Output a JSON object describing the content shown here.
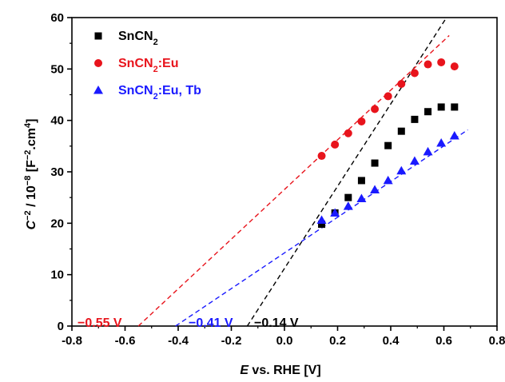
{
  "chart_data": {
    "type": "scatter",
    "xlabel_prefix": "E",
    "xlabel_rest": " vs. RHE [V]",
    "ylabel": {
      "c": "C",
      "sup1": "−2",
      "mid": " / 10",
      "sup2": "−8",
      "unit": " [F",
      "sup3": "−2",
      "unit2": ".cm",
      "sup4": "4",
      "close": "]"
    },
    "xlim": [
      -0.8,
      0.8
    ],
    "ylim": [
      0,
      60
    ],
    "xticks": [
      -0.8,
      -0.6,
      -0.4,
      -0.2,
      0.0,
      0.2,
      0.4,
      0.6,
      0.8
    ],
    "xtick_labels": [
      "-0.8",
      "-0.6",
      "-0.4",
      "-0.2",
      "0.0",
      "0.2",
      "0.4",
      "0.6",
      "0.8"
    ],
    "yticks": [
      0,
      10,
      20,
      30,
      40,
      50,
      60
    ],
    "ytick_labels": [
      "0",
      "10",
      "20",
      "30",
      "40",
      "50",
      "60"
    ],
    "grid": false,
    "legend_position": "top-left",
    "series": [
      {
        "name": "SnCN",
        "sub": "2",
        "suffix": "",
        "marker": "square",
        "color": "#000000",
        "x": [
          0.14,
          0.19,
          0.24,
          0.29,
          0.34,
          0.39,
          0.44,
          0.49,
          0.54,
          0.59,
          0.64
        ],
        "y": [
          19.8,
          22.0,
          25.0,
          28.3,
          31.7,
          35.1,
          37.9,
          40.2,
          41.7,
          42.6,
          42.6
        ],
        "fit": {
          "x0": -0.14,
          "slope": 80.0,
          "x_end": 0.61
        }
      },
      {
        "name": "SnCN",
        "sub": "2",
        "suffix": ":Eu",
        "marker": "circle",
        "color": "#e8141c",
        "x": [
          0.14,
          0.19,
          0.24,
          0.29,
          0.34,
          0.39,
          0.44,
          0.49,
          0.54,
          0.59,
          0.64
        ],
        "y": [
          33.1,
          35.3,
          37.5,
          39.8,
          42.2,
          44.7,
          47.1,
          49.2,
          50.9,
          51.3,
          50.5
        ],
        "fit": {
          "x0": -0.55,
          "slope": 48.3,
          "x_end": 0.62
        }
      },
      {
        "name": "SnCN",
        "sub": "2",
        "suffix": ":Eu, Tb",
        "marker": "triangle",
        "color": "#1a1aff",
        "x": [
          0.14,
          0.19,
          0.24,
          0.29,
          0.34,
          0.39,
          0.44,
          0.49,
          0.54,
          0.59,
          0.64
        ],
        "y": [
          20.6,
          22.0,
          23.3,
          24.8,
          26.5,
          28.3,
          30.2,
          32.1,
          33.9,
          35.6,
          37.0
        ],
        "fit": {
          "x0": -0.41,
          "slope": 34.7,
          "x_end": 0.69
        }
      }
    ],
    "annotations": [
      {
        "text": "−0.55 V",
        "color": "#e8141c",
        "x": -0.55
      },
      {
        "text": "−0.41 V",
        "color": "#1a1aff",
        "x": -0.41
      },
      {
        "text": "−0.14 V",
        "color": "#000000",
        "x": -0.14
      }
    ]
  }
}
